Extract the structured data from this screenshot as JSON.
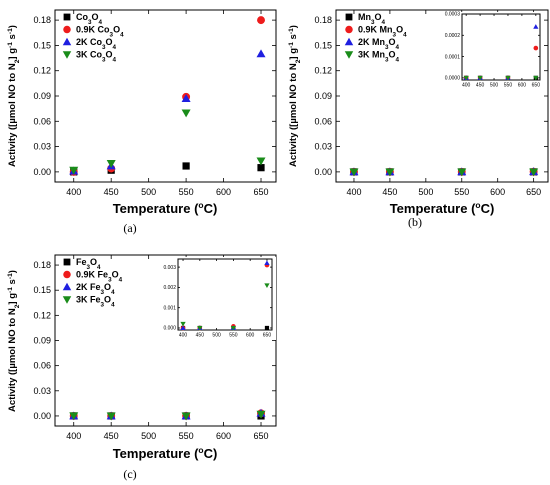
{
  "chart_data": [
    {
      "type": "scatter",
      "panel_label": "(a)",
      "xlabel": "Temperature (°C)",
      "ylabel": "Activity ([µmol NO to N₂] g⁻¹ s⁻¹)",
      "xlim": [
        375,
        670
      ],
      "ylim": [
        -0.012,
        0.192
      ],
      "xticks": [
        "400",
        "450",
        "500",
        "550",
        "600",
        "650"
      ],
      "yticks": [
        "0.00",
        "0.03",
        "0.06",
        "0.09",
        "0.12",
        "0.15",
        "0.18"
      ],
      "legend": "top-left",
      "x": [
        400,
        450,
        550,
        650
      ],
      "series": [
        {
          "name": "Co3O4",
          "marker": "square",
          "color": "#000000",
          "values": [
            0.0,
            0.002,
            0.007,
            0.005
          ]
        },
        {
          "name": "0.9K Co3O4",
          "marker": "circle",
          "color": "#ee1c1c",
          "values": [
            0.0,
            0.004,
            0.089,
            0.18
          ]
        },
        {
          "name": "2K Co3O4",
          "marker": "triangle-up",
          "color": "#1f1fe0",
          "values": [
            0.001,
            0.007,
            0.087,
            0.14
          ]
        },
        {
          "name": "3K Co3O4",
          "marker": "triangle-down",
          "color": "#1a8c1a",
          "values": [
            0.002,
            0.01,
            0.07,
            0.013
          ]
        }
      ]
    },
    {
      "type": "scatter",
      "panel_label": "(b)",
      "xlabel": "Temperature (°C)",
      "ylabel": "Activity ([µmol NO to N₂] g⁻¹ s⁻¹)",
      "xlim": [
        375,
        670
      ],
      "ylim": [
        -0.012,
        0.192
      ],
      "xticks": [
        "400",
        "450",
        "500",
        "550",
        "600",
        "650"
      ],
      "yticks": [
        "0.00",
        "0.03",
        "0.06",
        "0.09",
        "0.12",
        "0.15",
        "0.18"
      ],
      "legend": "top-left",
      "x": [
        400,
        450,
        550,
        650
      ],
      "series": [
        {
          "name": "Mn3O4",
          "marker": "square",
          "color": "#000000",
          "values": [
            0.0,
            0.0,
            0.0,
            0.0
          ]
        },
        {
          "name": "0.9K Mn3O4",
          "marker": "circle",
          "color": "#ee1c1c",
          "values": [
            0.0,
            0.0,
            0.0,
            0.00014
          ]
        },
        {
          "name": "2K Mn3O4",
          "marker": "triangle-up",
          "color": "#1f1fe0",
          "values": [
            0.0,
            0.0,
            0.0,
            0.00024
          ]
        },
        {
          "name": "3K Mn3O4",
          "marker": "triangle-down",
          "color": "#1a8c1a",
          "values": [
            0.0,
            0.0,
            0.0,
            0.0
          ]
        }
      ],
      "inset": {
        "xlim": [
          385,
          665
        ],
        "ylim": [
          -1e-05,
          0.0003
        ],
        "xticks": [
          "400",
          "450",
          "500",
          "550",
          "600",
          "650"
        ],
        "yticks": [
          "0.0000",
          "0.0001",
          "0.0002",
          "0.0003"
        ]
      }
    },
    {
      "type": "scatter",
      "panel_label": "(c)",
      "xlabel": "Temperature (°C)",
      "ylabel": "Activity ([µmol NO to N₂] g⁻¹ s⁻¹)",
      "xlim": [
        375,
        670
      ],
      "ylim": [
        -0.012,
        0.192
      ],
      "xticks": [
        "400",
        "450",
        "500",
        "550",
        "600",
        "650"
      ],
      "yticks": [
        "0.00",
        "0.03",
        "0.06",
        "0.09",
        "0.12",
        "0.15",
        "0.18"
      ],
      "legend": "top-left",
      "x": [
        400,
        450,
        550,
        650
      ],
      "series": [
        {
          "name": "Fe3O4",
          "marker": "square",
          "color": "#000000",
          "values": [
            0.0,
            0.0,
            0.0,
            0.0
          ]
        },
        {
          "name": "0.9K Fe3O4",
          "marker": "circle",
          "color": "#ee1c1c",
          "values": [
            0.0,
            0.0,
            8e-05,
            0.0031
          ]
        },
        {
          "name": "2K Fe3O4",
          "marker": "triangle-up",
          "color": "#1f1fe0",
          "values": [
            0.0,
            0.0,
            0.0,
            0.0032
          ]
        },
        {
          "name": "3K Fe3O4",
          "marker": "triangle-down",
          "color": "#1a8c1a",
          "values": [
            0.0002,
            0.0,
            0.0,
            0.0021
          ]
        }
      ],
      "inset": {
        "xlim": [
          385,
          665
        ],
        "ylim": [
          -0.0001,
          0.0034
        ],
        "xticks": [
          "400",
          "450",
          "500",
          "550",
          "600",
          "650"
        ],
        "yticks": [
          "0.000",
          "0.001",
          "0.002",
          "0.003"
        ]
      }
    }
  ]
}
